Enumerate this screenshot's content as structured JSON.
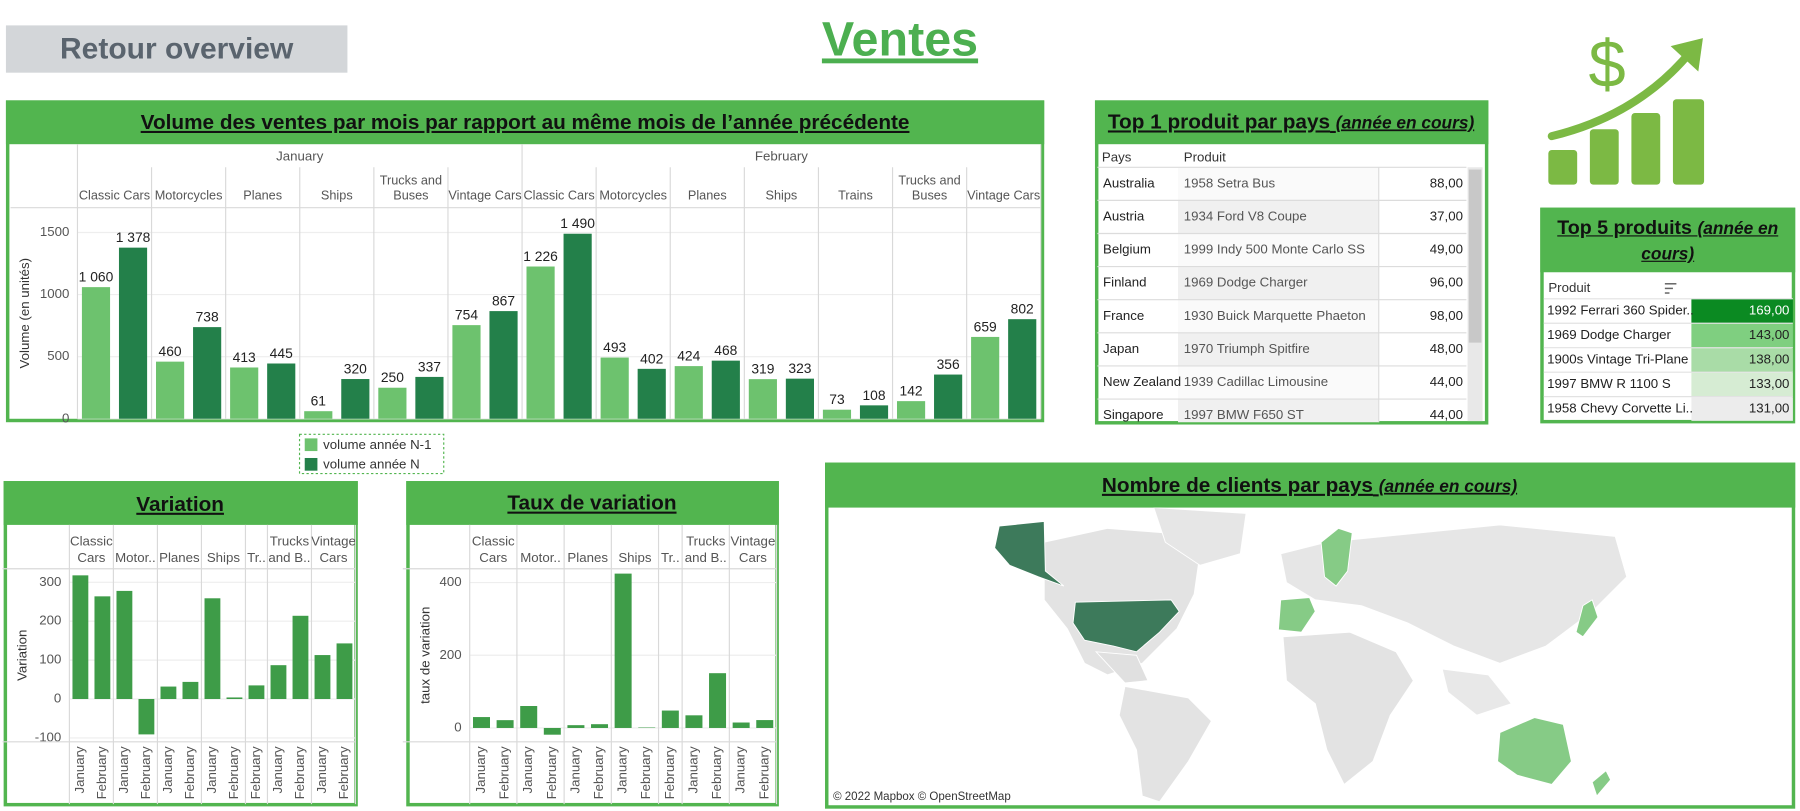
{
  "header": {
    "back_button": "Retour overview",
    "title": "Ventes"
  },
  "chart_data": [
    {
      "type": "bar",
      "title": "Volume des ventes par mois par rapport au même mois de l’année précédente",
      "y_label": "Volume (en unités)",
      "groups": [
        {
          "name": "January",
          "categories": [
            "Classic Cars",
            "Motorcycles",
            "Planes",
            "Ships",
            "Trucks and Buses",
            "Vintage Cars"
          ]
        },
        {
          "name": "February",
          "categories": [
            "Classic Cars",
            "Motorcycles",
            "Planes",
            "Ships",
            "Trains",
            "Trucks and Buses",
            "Vintage Cars"
          ]
        }
      ],
      "series": [
        {
          "name": "volume année N-1",
          "color": "#6dc26e",
          "values": [
            1060,
            460,
            413,
            61,
            250,
            754,
            1226,
            493,
            424,
            319,
            73,
            142,
            659
          ],
          "value_labels": [
            "1 060",
            "460",
            "413",
            "61",
            "250",
            "754",
            "1 226",
            "493",
            "424",
            "319",
            "73",
            "142",
            "659"
          ]
        },
        {
          "name": "volume année N",
          "color": "#23804a",
          "values": [
            1378,
            738,
            445,
            320,
            337,
            867,
            1490,
            402,
            468,
            323,
            108,
            356,
            802
          ],
          "value_labels": [
            "1 378",
            "738",
            "445",
            "320",
            "337",
            "867",
            "1 490",
            "402",
            "468",
            "323",
            "108",
            "356",
            "802"
          ]
        }
      ],
      "ylim": [
        0,
        1700
      ],
      "yticks": [
        0,
        500,
        1000,
        1500
      ],
      "grid": true
    },
    {
      "type": "bar",
      "title": "Variation",
      "y_label": "Variation",
      "groups": [
        {
          "name": "Classic Cars",
          "categories": [
            "January",
            "February"
          ]
        },
        {
          "name": "Motor..",
          "categories": [
            "January",
            "February"
          ]
        },
        {
          "name": "Planes",
          "categories": [
            "January",
            "February"
          ]
        },
        {
          "name": "Ships",
          "categories": [
            "January",
            "February"
          ]
        },
        {
          "name": "Tr..",
          "categories": [
            "February"
          ]
        },
        {
          "name": "Trucks and B..",
          "categories": [
            "January",
            "February"
          ]
        },
        {
          "name": "Vintage Cars",
          "categories": [
            "January",
            "February"
          ]
        }
      ],
      "values": [
        318,
        264,
        278,
        -91,
        32,
        44,
        259,
        4,
        35,
        87,
        214,
        113,
        143
      ],
      "color": "#3e9c48",
      "ylim": [
        -110,
        335
      ],
      "yticks": [
        -100,
        0,
        100,
        200,
        300
      ],
      "grid": true
    },
    {
      "type": "bar",
      "title": "Taux de variation",
      "y_label": "taux de variation",
      "groups": [
        {
          "name": "Classic Cars",
          "categories": [
            "January",
            "February"
          ]
        },
        {
          "name": "Motor..",
          "categories": [
            "January",
            "February"
          ]
        },
        {
          "name": "Planes",
          "categories": [
            "January",
            "February"
          ]
        },
        {
          "name": "Ships",
          "categories": [
            "January",
            "February"
          ]
        },
        {
          "name": "Tr..",
          "categories": [
            "February"
          ]
        },
        {
          "name": "Trucks and B..",
          "categories": [
            "January",
            "February"
          ]
        },
        {
          "name": "Vintage Cars",
          "categories": [
            "January",
            "February"
          ]
        }
      ],
      "values": [
        30,
        21.5,
        60.4,
        -18.5,
        7.7,
        10.4,
        424.6,
        1.3,
        47.9,
        34.8,
        150.7,
        15,
        21.7
      ],
      "color": "#3e9c48",
      "ylim": [
        -38,
        438
      ],
      "yticks": [
        0,
        200,
        400
      ],
      "grid": true
    }
  ],
  "top1": {
    "title": "Top 1 produit par pays",
    "subtitle": "(année en cours)",
    "columns": [
      "Pays",
      "Produit"
    ],
    "rows": [
      [
        "Australia",
        "1958 Setra Bus",
        "88,00"
      ],
      [
        "Austria",
        "1934 Ford V8 Coupe",
        "37,00"
      ],
      [
        "Belgium",
        "1999 Indy 500 Monte Carlo SS",
        "49,00"
      ],
      [
        "Finland",
        "1969 Dodge Charger",
        "96,00"
      ],
      [
        "France",
        "1930 Buick Marquette Phaeton",
        "98,00"
      ],
      [
        "Japan",
        "1970 Triumph Spitfire",
        "48,00"
      ],
      [
        "New Zealand",
        "1939 Cadillac Limousine",
        "44,00"
      ],
      [
        "Singapore",
        "1997 BMW F650 ST",
        "44,00"
      ]
    ]
  },
  "top5": {
    "title": "Top 5 produits",
    "subtitle": "(année en cours)",
    "column": "Produit",
    "rows": [
      [
        "1992 Ferrari 360 Spider..",
        "169,00"
      ],
      [
        "1969 Dodge Charger",
        "143,00"
      ],
      [
        "1900s Vintage Tri-Plane",
        "138,00"
      ],
      [
        "1997 BMW R 1100 S",
        "133,00"
      ],
      [
        "1958 Chevy Corvette Li..",
        "131,00"
      ]
    ],
    "colors": [
      "#0b8a22",
      "#7fcf80",
      "#a9dca7",
      "#d6ecd3",
      "#ececec"
    ]
  },
  "map": {
    "title": "Nombre de clients par pays",
    "subtitle": "(année en cours)",
    "credit": "© 2022 Mapbox  © OpenStreetMap"
  }
}
